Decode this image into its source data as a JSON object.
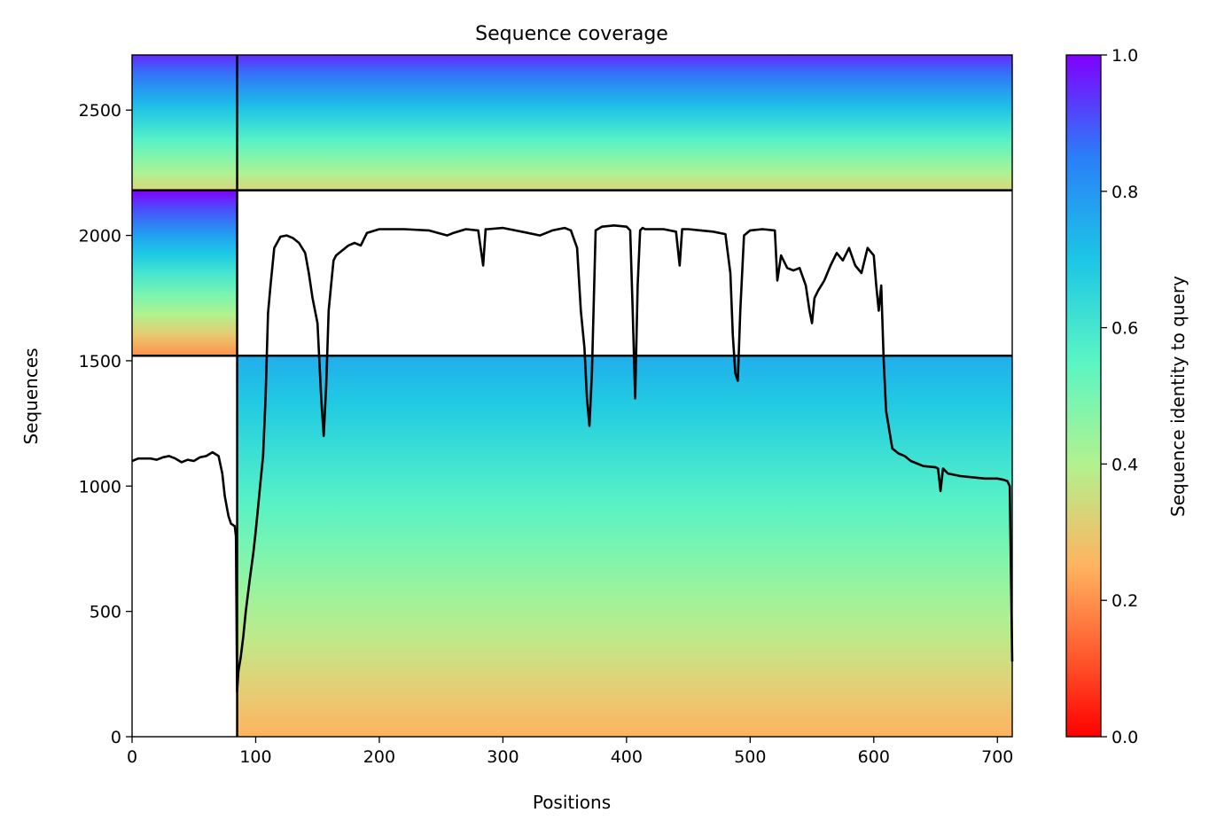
{
  "chart_data": {
    "type": "heatmap",
    "title": "Sequence coverage",
    "xlabel": "Positions",
    "ylabel": "Sequences",
    "xlim": [
      0,
      712
    ],
    "ylim": [
      0,
      2720
    ],
    "x_ticks": [
      0,
      100,
      200,
      300,
      400,
      500,
      600,
      700
    ],
    "y_ticks": [
      0,
      500,
      1000,
      1500,
      2000,
      2500
    ],
    "colorbar": {
      "label": "Sequence identity to query",
      "ticks": [
        0.0,
        0.2,
        0.4,
        0.6,
        0.8,
        1.0
      ],
      "tick_labels": [
        "0.0",
        "0.2",
        "0.4",
        "0.6",
        "0.8",
        "1.0"
      ],
      "colormap": "rainbow",
      "range": [
        0,
        1
      ]
    },
    "chains": [
      {
        "x_start": 0,
        "x_end": 85,
        "seq_start": 1520,
        "seq_end": 2180,
        "identity_top": 1.0,
        "identity_bottom": 0.2
      },
      {
        "x_start": 85,
        "x_end": 712,
        "seq_start": 0,
        "seq_end": 1520,
        "identity_top": 0.75,
        "identity_bottom": 0.25
      },
      {
        "x_start": 0,
        "x_end": 712,
        "seq_start": 2180,
        "seq_end": 2720,
        "identity_top": 0.95,
        "identity_bottom": 0.33
      }
    ],
    "block_separators": {
      "x": [
        85
      ],
      "y": [
        1520,
        2180
      ]
    },
    "series": [
      {
        "x": [
          0,
          5,
          10,
          15,
          20,
          25,
          30,
          35,
          40,
          45,
          50,
          55,
          60,
          65,
          70,
          73,
          75,
          78,
          80,
          83,
          84,
          85,
          86,
          88,
          90,
          92,
          95,
          98,
          100,
          102,
          104,
          106,
          108,
          110,
          112,
          115,
          120,
          125,
          130,
          135,
          140,
          143,
          146,
          150,
          153,
          155,
          157,
          159,
          161,
          163,
          165,
          170,
          175,
          180,
          185,
          190,
          200,
          220,
          240,
          255,
          260,
          270,
          280,
          284,
          286,
          288,
          300,
          310,
          320,
          330,
          340,
          350,
          355,
          360,
          363,
          366,
          368,
          370,
          372,
          375,
          380,
          390,
          400,
          403,
          405,
          407,
          409,
          411,
          413,
          415,
          420,
          430,
          440,
          443,
          445,
          447,
          450,
          460,
          470,
          480,
          484,
          486,
          488,
          490,
          492,
          495,
          500,
          510,
          520,
          522,
          525,
          530,
          535,
          540,
          545,
          548,
          550,
          552,
          555,
          560,
          565,
          570,
          575,
          580,
          585,
          590,
          595,
          600,
          602,
          604,
          606,
          608,
          610,
          615,
          620,
          625,
          630,
          640,
          650,
          652,
          654,
          656,
          660,
          670,
          680,
          690,
          700,
          705,
          708,
          710,
          712
        ],
        "y": [
          1100,
          1110,
          1110,
          1110,
          1105,
          1115,
          1120,
          1110,
          1095,
          1105,
          1100,
          1115,
          1120,
          1135,
          1120,
          1050,
          960,
          880,
          850,
          840,
          800,
          180,
          260,
          320,
          400,
          500,
          620,
          730,
          820,
          920,
          1020,
          1120,
          1350,
          1690,
          1800,
          1950,
          1995,
          2000,
          1990,
          1970,
          1930,
          1850,
          1750,
          1650,
          1350,
          1200,
          1400,
          1700,
          1800,
          1900,
          1920,
          1940,
          1960,
          1970,
          1960,
          2010,
          2025,
          2025,
          2020,
          2000,
          2010,
          2025,
          2020,
          1880,
          2025,
          2025,
          2030,
          2020,
          2010,
          2000,
          2020,
          2030,
          2020,
          1950,
          1700,
          1550,
          1350,
          1240,
          1450,
          2020,
          2035,
          2040,
          2035,
          2020,
          1700,
          1350,
          1800,
          2020,
          2030,
          2025,
          2025,
          2025,
          2015,
          1880,
          2025,
          2025,
          2025,
          2020,
          2015,
          2005,
          1850,
          1600,
          1450,
          1420,
          1700,
          2000,
          2020,
          2025,
          2020,
          1820,
          1920,
          1870,
          1860,
          1870,
          1800,
          1700,
          1650,
          1750,
          1780,
          1820,
          1880,
          1930,
          1900,
          1950,
          1880,
          1850,
          1950,
          1920,
          1800,
          1700,
          1800,
          1500,
          1300,
          1150,
          1130,
          1120,
          1100,
          1080,
          1075,
          1070,
          980,
          1070,
          1050,
          1040,
          1035,
          1030,
          1030,
          1025,
          1020,
          1000,
          300
        ]
      }
    ]
  }
}
